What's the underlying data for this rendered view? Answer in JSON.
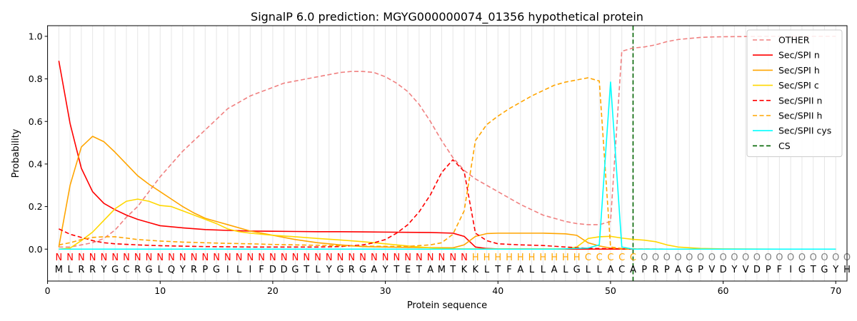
{
  "chart_data": {
    "type": "line",
    "title": "SignalP 6.0 prediction: MGYG000000074_01356 hypothetical protein",
    "xlabel": "Protein sequence",
    "ylabel": "Probability",
    "xlim": [
      0,
      71
    ],
    "ylim": [
      -0.15,
      1.05
    ],
    "xticks": [
      "0",
      "10",
      "20",
      "30",
      "40",
      "50",
      "60",
      "70"
    ],
    "yticks": [
      "0.0",
      "0.2",
      "0.4",
      "0.6",
      "0.8",
      "1.0"
    ],
    "legend_position": "top-right",
    "sequence": [
      "M",
      "L",
      "R",
      "R",
      "Y",
      "G",
      "C",
      "R",
      "G",
      "L",
      "Q",
      "Y",
      "R",
      "P",
      "G",
      "I",
      "L",
      "I",
      "F",
      "D",
      "D",
      "G",
      "T",
      "L",
      "Y",
      "G",
      "R",
      "G",
      "A",
      "Y",
      "T",
      "E",
      "T",
      "A",
      "M",
      "T",
      "K",
      "K",
      "L",
      "T",
      "F",
      "A",
      "L",
      "L",
      "A",
      "L",
      "G",
      "L",
      "L",
      "A",
      "C",
      "A",
      "P",
      "R",
      "P",
      "A",
      "G",
      "P",
      "V",
      "D",
      "Y",
      "V",
      "D",
      "P",
      "F",
      "I",
      "G",
      "T",
      "G",
      "Y",
      "H"
    ],
    "region_labels": [
      "N",
      "N",
      "N",
      "N",
      "N",
      "N",
      "N",
      "N",
      "N",
      "N",
      "N",
      "N",
      "N",
      "N",
      "N",
      "N",
      "N",
      "N",
      "N",
      "N",
      "N",
      "N",
      "N",
      "N",
      "N",
      "N",
      "N",
      "N",
      "N",
      "N",
      "N",
      "N",
      "N",
      "N",
      "N",
      "N",
      "N",
      "H",
      "H",
      "H",
      "H",
      "H",
      "H",
      "H",
      "H",
      "H",
      "H",
      "C",
      "C",
      "C",
      "C",
      "C",
      "O",
      "O",
      "O",
      "O",
      "O",
      "O",
      "O",
      "O",
      "O",
      "O",
      "O",
      "O",
      "O",
      "O",
      "O",
      "O",
      "O",
      "O",
      "O"
    ],
    "region_colors": {
      "N": "#ff0000",
      "H": "#ffa500",
      "C": "#ffa500",
      "O": "#808080"
    },
    "cleavage_site": 52,
    "series": [
      {
        "name": "OTHER",
        "color": "#f08080",
        "dash": "dashed",
        "x": [
          1,
          2,
          3,
          4,
          5,
          6,
          7,
          8,
          9,
          10,
          11,
          12,
          13,
          14,
          15,
          16,
          17,
          18,
          19,
          20,
          21,
          22,
          23,
          24,
          25,
          26,
          27,
          28,
          29,
          30,
          31,
          32,
          33,
          34,
          35,
          36,
          37,
          38,
          39,
          40,
          41,
          42,
          43,
          44,
          45,
          46,
          47,
          48,
          49,
          50,
          51,
          52,
          53,
          54,
          55,
          56,
          57,
          58,
          59,
          60,
          62,
          64,
          66,
          68,
          70
        ],
        "y": [
          0.01,
          0.01,
          0.02,
          0.03,
          0.05,
          0.09,
          0.15,
          0.2,
          0.27,
          0.34,
          0.4,
          0.46,
          0.51,
          0.56,
          0.61,
          0.66,
          0.69,
          0.72,
          0.74,
          0.76,
          0.78,
          0.79,
          0.8,
          0.81,
          0.82,
          0.83,
          0.835,
          0.835,
          0.83,
          0.81,
          0.78,
          0.74,
          0.68,
          0.6,
          0.51,
          0.43,
          0.37,
          0.33,
          0.3,
          0.27,
          0.24,
          0.21,
          0.185,
          0.16,
          0.145,
          0.13,
          0.12,
          0.115,
          0.115,
          0.13,
          0.93,
          0.945,
          0.95,
          0.96,
          0.975,
          0.985,
          0.99,
          0.995,
          0.997,
          0.998,
          0.999,
          1.0,
          1.0,
          1.0,
          1.0
        ]
      },
      {
        "name": "Sec/SPI n",
        "color": "#ff0000",
        "dash": "solid",
        "x": [
          1,
          2,
          3,
          4,
          5,
          6,
          7,
          8,
          9,
          10,
          12,
          14,
          16,
          18,
          20,
          22,
          24,
          26,
          28,
          30,
          32,
          34,
          36,
          37,
          38,
          39,
          40,
          45,
          50,
          55,
          60,
          65,
          70
        ],
        "y": [
          0.885,
          0.59,
          0.38,
          0.27,
          0.215,
          0.185,
          0.16,
          0.14,
          0.125,
          0.11,
          0.1,
          0.092,
          0.088,
          0.085,
          0.084,
          0.083,
          0.082,
          0.082,
          0.081,
          0.08,
          0.079,
          0.078,
          0.075,
          0.06,
          0.01,
          0.003,
          0.001,
          0.0,
          0.0,
          0.0,
          0.0,
          0.0,
          0.0
        ]
      },
      {
        "name": "Sec/SPI h",
        "color": "#ffa500",
        "dash": "solid",
        "x": [
          1,
          2,
          3,
          4,
          5,
          6,
          7,
          8,
          9,
          10,
          11,
          12,
          13,
          14,
          15,
          16,
          18,
          20,
          22,
          24,
          26,
          28,
          30,
          32,
          34,
          36,
          37,
          38,
          39,
          40,
          42,
          44,
          46,
          47,
          48,
          49,
          50,
          51,
          55,
          60,
          70
        ],
        "y": [
          0.01,
          0.3,
          0.48,
          0.53,
          0.505,
          0.455,
          0.4,
          0.345,
          0.305,
          0.27,
          0.235,
          0.2,
          0.17,
          0.145,
          0.13,
          0.115,
          0.085,
          0.065,
          0.045,
          0.03,
          0.02,
          0.012,
          0.01,
          0.008,
          0.007,
          0.006,
          0.02,
          0.06,
          0.073,
          0.075,
          0.075,
          0.075,
          0.072,
          0.065,
          0.03,
          0.015,
          0.005,
          0.001,
          0.0,
          0.0,
          0.0
        ]
      },
      {
        "name": "Sec/SPI c",
        "color": "#ffd700",
        "dash": "solid",
        "x": [
          1,
          2,
          3,
          4,
          5,
          6,
          7,
          8,
          9,
          10,
          11,
          12,
          13,
          14,
          15,
          16,
          17,
          18,
          20,
          22,
          24,
          26,
          28,
          30,
          32,
          34,
          35,
          36,
          37,
          38,
          39,
          40,
          42,
          44,
          46,
          47,
          48,
          49,
          50,
          51,
          52,
          53,
          54,
          55,
          56,
          58,
          60,
          65,
          70
        ],
        "y": [
          0.0,
          0.005,
          0.04,
          0.08,
          0.135,
          0.19,
          0.225,
          0.235,
          0.225,
          0.205,
          0.2,
          0.18,
          0.16,
          0.14,
          0.12,
          0.095,
          0.082,
          0.075,
          0.065,
          0.058,
          0.05,
          0.043,
          0.035,
          0.025,
          0.015,
          0.006,
          0.003,
          0.002,
          0.001,
          0.001,
          0.001,
          0.001,
          0.001,
          0.001,
          0.001,
          0.01,
          0.05,
          0.058,
          0.06,
          0.052,
          0.046,
          0.042,
          0.035,
          0.02,
          0.01,
          0.003,
          0.001,
          0.0,
          0.0
        ]
      },
      {
        "name": "Sec/SPII n",
        "color": "#ff0000",
        "dash": "dashed",
        "x": [
          1,
          2,
          3,
          4,
          5,
          6,
          8,
          10,
          12,
          14,
          16,
          18,
          20,
          22,
          24,
          26,
          28,
          29,
          30,
          31,
          32,
          33,
          34,
          35,
          36,
          37,
          38,
          39,
          40,
          42,
          44,
          46,
          48,
          50,
          51,
          52,
          55,
          60,
          70
        ],
        "y": [
          0.095,
          0.07,
          0.055,
          0.04,
          0.03,
          0.025,
          0.02,
          0.016,
          0.014,
          0.012,
          0.011,
          0.01,
          0.01,
          0.01,
          0.01,
          0.012,
          0.02,
          0.03,
          0.045,
          0.075,
          0.115,
          0.175,
          0.255,
          0.36,
          0.42,
          0.365,
          0.075,
          0.04,
          0.025,
          0.02,
          0.017,
          0.01,
          0.004,
          0.002,
          0.001,
          0.0,
          0.0,
          0.0,
          0.0
        ]
      },
      {
        "name": "Sec/SPII h",
        "color": "#ffa500",
        "dash": "dashed",
        "x": [
          1,
          2,
          3,
          4,
          5,
          6,
          7,
          8,
          10,
          12,
          14,
          16,
          18,
          20,
          22,
          24,
          26,
          28,
          30,
          32,
          34,
          35,
          36,
          37,
          38,
          39,
          40,
          41,
          42,
          43,
          44,
          45,
          46,
          47,
          48,
          49,
          50,
          51,
          52,
          55,
          60,
          70
        ],
        "y": [
          0.02,
          0.03,
          0.045,
          0.055,
          0.058,
          0.058,
          0.052,
          0.045,
          0.038,
          0.033,
          0.03,
          0.027,
          0.025,
          0.022,
          0.02,
          0.018,
          0.016,
          0.014,
          0.013,
          0.013,
          0.02,
          0.03,
          0.07,
          0.18,
          0.51,
          0.585,
          0.625,
          0.66,
          0.69,
          0.72,
          0.745,
          0.77,
          0.785,
          0.795,
          0.805,
          0.79,
          0.01,
          0.003,
          0.001,
          0.0,
          0.0,
          0.0
        ]
      },
      {
        "name": "Sec/SPII cys",
        "color": "#00ffff",
        "dash": "solid",
        "x": [
          1,
          5,
          10,
          20,
          30,
          40,
          45,
          48,
          49,
          50,
          51,
          52,
          55,
          60,
          70
        ],
        "y": [
          0.0,
          0.0,
          0.0,
          0.0,
          0.0,
          0.0,
          0.0,
          0.005,
          0.02,
          0.785,
          0.01,
          0.0,
          0.0,
          0.0,
          0.0
        ]
      },
      {
        "name": "CS",
        "color": "#006400",
        "dash": "dashed",
        "x": [
          52,
          52
        ],
        "y": [
          -0.15,
          1.05
        ]
      }
    ]
  }
}
